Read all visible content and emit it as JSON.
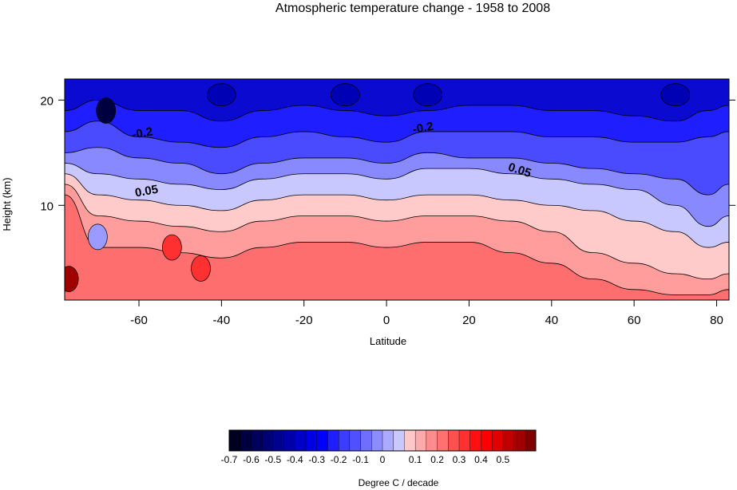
{
  "chart_data": {
    "type": "heatmap",
    "title": "Atmospheric temperature change - 1958 to 2008",
    "xlabel": "Latitude",
    "ylabel": "Height (km)",
    "xlim": [
      -78,
      83
    ],
    "ylim": [
      1,
      22
    ],
    "x_ticks": [
      -60,
      -40,
      -20,
      0,
      20,
      40,
      60,
      80
    ],
    "y_ticks": [
      10,
      20
    ],
    "contour_labels": [
      {
        "text": "-0.2",
        "x": -59,
        "y": 16.5
      },
      {
        "text": "-0.2",
        "x": 9,
        "y": 17
      },
      {
        "text": "0.05",
        "x": -58,
        "y": 11
      },
      {
        "text": "0.05",
        "x": 32,
        "y": 13
      }
    ],
    "bands": [
      {
        "name": "strat_top",
        "value": -0.3,
        "color": "#1e1eff",
        "top": [
          22,
          22,
          22,
          22,
          22
        ],
        "bottom_x": [
          -78,
          -60,
          -40,
          -20,
          0,
          20,
          40,
          60,
          83
        ],
        "bottom": [
          20,
          19,
          18,
          19,
          18.5,
          19,
          19,
          18.5,
          19.5
        ]
      },
      {
        "name": "strat_mid",
        "value": -0.2,
        "color": "#4646ff"
      },
      {
        "name": "strat_low",
        "value": -0.1,
        "color": "#8a8aff"
      },
      {
        "name": "transition",
        "value": 0,
        "color": "#c8c8ff"
      },
      {
        "name": "trop_top",
        "value": 0.05,
        "color": "#ffc8c8"
      },
      {
        "name": "trop_mid",
        "value": 0.1,
        "color": "#ff9696"
      },
      {
        "name": "trop_low",
        "value": 0.2,
        "color": "#ff6464"
      }
    ],
    "hotspots": [
      {
        "x": -68,
        "y": 19,
        "value": -0.7,
        "color": "#000040"
      },
      {
        "x": -45,
        "y": 4,
        "value": 0.3,
        "color": "#ff3030"
      },
      {
        "x": -52,
        "y": 6,
        "value": 0.3,
        "color": "#ff3030"
      },
      {
        "x": -77,
        "y": 3,
        "value": 0.5,
        "color": "#a00000"
      },
      {
        "x": -70,
        "y": 7,
        "value": -0.1,
        "color": "#9a9aff"
      }
    ],
    "colorbar": {
      "label": "Degree C / decade",
      "tick_labels": [
        "-0.7",
        "-0.6",
        "-0.5",
        "-0.4",
        "-0.3",
        "-0.2",
        "-0.1",
        "0",
        "0.1",
        "0.2",
        "0.3",
        "0.4",
        "0.5"
      ],
      "colors": [
        "#000020",
        "#000040",
        "#00005a",
        "#000075",
        "#00008f",
        "#0000aa",
        "#0000c8",
        "#0000e6",
        "#0000ff",
        "#1e1eff",
        "#3c3cff",
        "#5050ff",
        "#6e6eff",
        "#8c8cff",
        "#aaaaff",
        "#c8c8ff",
        "#ffc8c8",
        "#ffaaaa",
        "#ff8c8c",
        "#ff7070",
        "#ff5050",
        "#ff3030",
        "#ff1010",
        "#ff0000",
        "#e00000",
        "#c00000",
        "#a00000",
        "#800000"
      ]
    }
  }
}
